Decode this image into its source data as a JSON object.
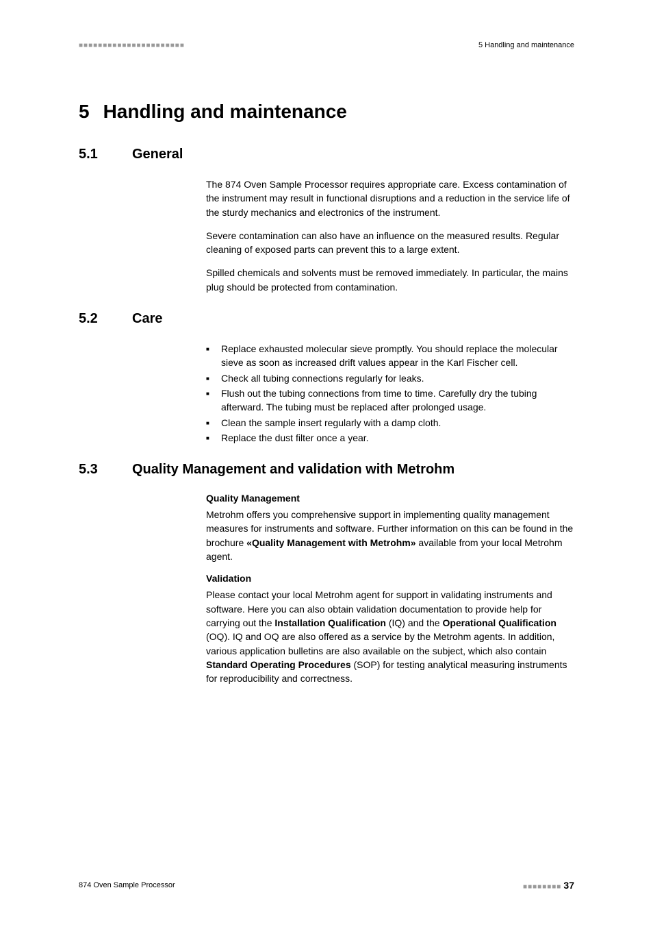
{
  "header": {
    "dashes": "■■■■■■■■■■■■■■■■■■■■■■",
    "right_text": "5 Handling and maintenance"
  },
  "chapter": {
    "number": "5",
    "title": "Handling and maintenance"
  },
  "sections": {
    "s1": {
      "number": "5.1",
      "title": "General",
      "p1": "The 874 Oven Sample Processor requires appropriate care. Excess contamination of the instrument may result in functional disruptions and a reduction in the service life of the sturdy mechanics and electronics of the instrument.",
      "p2": "Severe contamination can also have an influence on the measured results. Regular cleaning of exposed parts can prevent this to a large extent.",
      "p3": "Spilled chemicals and solvents must be removed immediately. In particular, the mains plug should be protected from contamination."
    },
    "s2": {
      "number": "5.2",
      "title": "Care",
      "bullets": {
        "b1": "Replace exhausted molecular sieve promptly. You should replace the molecular sieve as soon as increased drift values appear in the Karl Fischer cell.",
        "b2": "Check all tubing connections regularly for leaks.",
        "b3": "Flush out the tubing connections from time to time. Carefully dry the tubing afterward. The tubing must be replaced after prolonged usage.",
        "b4": "Clean the sample insert regularly with a damp cloth.",
        "b5": "Replace the dust filter once a year."
      }
    },
    "s3": {
      "number": "5.3",
      "title": "Quality Management and validation with Metrohm",
      "sub1_title": "Quality Management",
      "sub1_p1_a": "Metrohm offers you comprehensive support in implementing quality management measures for instruments and software. Further information on this can be found in the brochure ",
      "sub1_p1_b": "«Quality Management with Metrohm»",
      "sub1_p1_c": " available from your local Metrohm agent.",
      "sub2_title": "Validation",
      "sub2_p1_a": "Please contact your local Metrohm agent for support in validating instruments and software. Here you can also obtain validation documentation to provide help for carrying out the ",
      "sub2_p1_b": "Installation Qualification",
      "sub2_p1_c": " (IQ) and the ",
      "sub2_p1_d": "Operational Qualification",
      "sub2_p1_e": " (OQ). IQ and OQ are also offered as a service by the Metrohm agents. In addition, various application bulletins are also available on the subject, which also contain ",
      "sub2_p1_f": "Standard Operating Procedures",
      "sub2_p1_g": " (SOP) for testing analytical measuring instruments for reproducibility and correctness."
    }
  },
  "footer": {
    "left": "874 Oven Sample Processor",
    "dashes": "■■■■■■■■",
    "page": "37"
  }
}
